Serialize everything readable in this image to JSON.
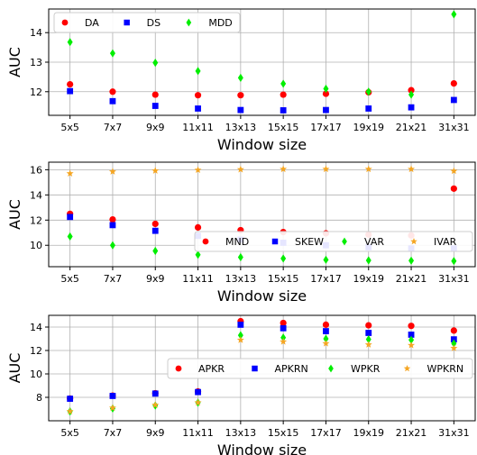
{
  "chart_data": [
    {
      "type": "scatter",
      "xlabel": "Window size",
      "ylabel": "AUC",
      "categories": [
        "5x5",
        "7x7",
        "9x9",
        "11x11",
        "13x13",
        "15x15",
        "17x17",
        "19x19",
        "21x21",
        "31x31"
      ],
      "ylim": [
        11.2,
        14.8
      ],
      "yticks": [
        12,
        13,
        14
      ],
      "grid": true,
      "legend_placement": "top-left",
      "legend_columns": 3,
      "series": [
        {
          "name": "DA",
          "marker": "circle",
          "color": "#ff0000",
          "values": [
            12.25,
            12.0,
            11.9,
            11.88,
            11.88,
            11.9,
            11.93,
            11.98,
            12.05,
            12.28
          ]
        },
        {
          "name": "DS",
          "marker": "square",
          "color": "#0000ff",
          "values": [
            12.02,
            11.68,
            11.52,
            11.43,
            11.38,
            11.37,
            11.38,
            11.43,
            11.47,
            11.72
          ]
        },
        {
          "name": "MDD",
          "marker": "diamond",
          "color": "#00ee00",
          "values": [
            13.68,
            13.3,
            12.98,
            12.7,
            12.47,
            12.27,
            12.1,
            12.0,
            11.9,
            14.62
          ]
        }
      ]
    },
    {
      "type": "scatter",
      "xlabel": "Window size",
      "ylabel": "AUC",
      "categories": [
        "5x5",
        "7x7",
        "9x9",
        "11x11",
        "13x13",
        "15x15",
        "17x17",
        "19x19",
        "21x21",
        "31x31"
      ],
      "ylim": [
        8.3,
        16.6
      ],
      "yticks": [
        10,
        12,
        14,
        16
      ],
      "grid": true,
      "legend_placement": "center-right",
      "legend_columns": 4,
      "series": [
        {
          "name": "MND",
          "marker": "circle",
          "color": "#ff0000",
          "values": [
            12.5,
            12.05,
            11.7,
            11.42,
            11.2,
            11.05,
            10.95,
            10.85,
            10.78,
            14.5
          ]
        },
        {
          "name": "SKEW",
          "marker": "square",
          "color": "#0000ff",
          "values": [
            12.25,
            11.6,
            11.15,
            10.75,
            10.45,
            10.2,
            10.0,
            9.85,
            9.75,
            9.75
          ]
        },
        {
          "name": "VAR",
          "marker": "diamond",
          "color": "#00ee00",
          "values": [
            10.7,
            10.0,
            9.55,
            9.25,
            9.05,
            8.95,
            8.85,
            8.8,
            8.78,
            8.75
          ]
        },
        {
          "name": "IVAR",
          "marker": "star",
          "color": "#f5a623",
          "values": [
            15.7,
            15.85,
            15.92,
            15.98,
            16.02,
            16.05,
            16.05,
            16.05,
            16.05,
            15.9
          ]
        }
      ]
    },
    {
      "type": "scatter",
      "xlabel": "Window size",
      "ylabel": "AUC",
      "categories": [
        "5x5",
        "7x7",
        "9x9",
        "11x11",
        "13x13",
        "15x15",
        "17x17",
        "19x19",
        "21x21",
        "31x31"
      ],
      "ylim": [
        6.0,
        15.0
      ],
      "yticks": [
        8,
        10,
        12,
        14
      ],
      "grid": true,
      "legend_placement": "center-right",
      "legend_columns": 4,
      "series": [
        {
          "name": "APKR",
          "marker": "circle",
          "color": "#ff0000",
          "values": [
            7.9,
            8.15,
            8.35,
            8.5,
            14.5,
            14.35,
            14.2,
            14.15,
            14.1,
            13.7
          ]
        },
        {
          "name": "APKRN",
          "marker": "square",
          "color": "#0000ff",
          "values": [
            7.88,
            8.12,
            8.32,
            8.45,
            14.2,
            13.9,
            13.65,
            13.5,
            13.35,
            12.95
          ]
        },
        {
          "name": "WPKR",
          "marker": "diamond",
          "color": "#00ee00",
          "values": [
            6.8,
            7.05,
            7.3,
            7.55,
            13.3,
            13.1,
            13.0,
            12.95,
            12.9,
            12.6
          ]
        },
        {
          "name": "WPKRN",
          "marker": "star",
          "color": "#f5a623",
          "values": [
            6.8,
            7.1,
            7.35,
            7.55,
            12.9,
            12.75,
            12.6,
            12.5,
            12.45,
            12.2
          ]
        }
      ]
    }
  ]
}
